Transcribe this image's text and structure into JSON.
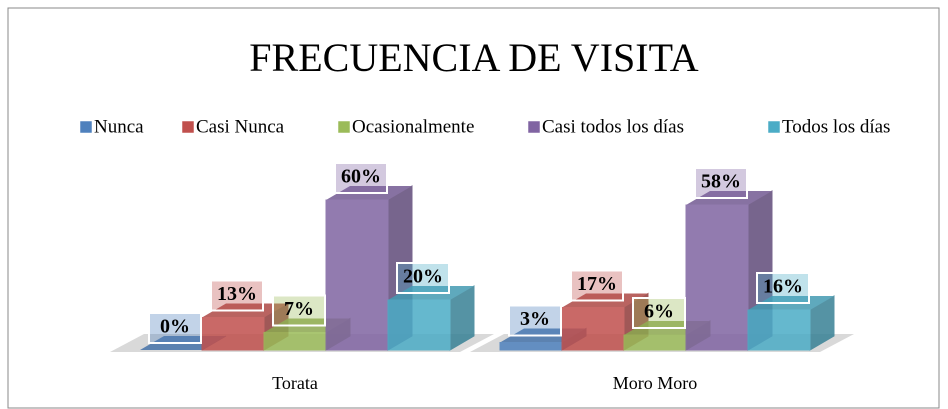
{
  "chart_data": {
    "type": "bar3d",
    "title": "FRECUENCIA DE VISITA",
    "categories": [
      "Torata",
      "Moro Moro"
    ],
    "series": [
      {
        "name": "Nunca",
        "color": "#4f81bd",
        "values": [
          0,
          3
        ],
        "value_labels": [
          "0%",
          "3%"
        ]
      },
      {
        "name": "Casi Nunca",
        "color": "#c0504d",
        "values": [
          13,
          17
        ],
        "value_labels": [
          "13%",
          "17%"
        ]
      },
      {
        "name": "Ocasionalmente",
        "color": "#9bbb59",
        "values": [
          7,
          6
        ],
        "value_labels": [
          "7%",
          "6%"
        ]
      },
      {
        "name": "Casi todos los días",
        "color": "#8064a2",
        "values": [
          60,
          58
        ],
        "value_labels": [
          "60%",
          "58%"
        ]
      },
      {
        "name": "Todos los días",
        "color": "#4bacc6",
        "values": [
          20,
          16
        ],
        "value_labels": [
          "20%",
          "16%"
        ]
      }
    ]
  }
}
